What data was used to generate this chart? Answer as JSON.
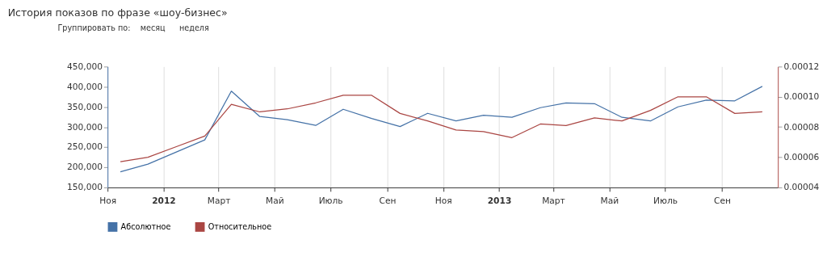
{
  "chart_data": {
    "type": "line",
    "title": "История показов по фразе «шоу-бизнес»",
    "annotations": [
      "Группировать по:",
      "месяц",
      "неделя"
    ],
    "x": [
      "2011-11-15",
      "2011-12-15",
      "2012-01-15",
      "2012-02-15",
      "2012-03-15",
      "2012-04-15",
      "2012-05-15",
      "2012-06-15",
      "2012-07-15",
      "2012-08-15",
      "2012-09-15",
      "2012-10-15",
      "2012-11-15",
      "2012-12-15",
      "2013-01-15",
      "2013-02-15",
      "2013-03-15",
      "2013-04-15",
      "2013-05-15",
      "2013-06-15",
      "2013-07-15",
      "2013-08-15",
      "2013-09-15",
      "2013-10-15"
    ],
    "series": [
      {
        "name": "Абсолютное",
        "color": "#4572a7",
        "values": [
          189000,
          208000,
          238000,
          268000,
          389000,
          326000,
          318000,
          304000,
          344000,
          321000,
          301000,
          334000,
          315000,
          329000,
          324000,
          348000,
          360000,
          358000,
          324000,
          315000,
          350000,
          367000,
          365000,
          401000
        ]
      },
      {
        "name": "Относительное",
        "color": "#aa4643",
        "axis": "y2",
        "values": [
          5.7e-05,
          6e-05,
          6.7e-05,
          7.4e-05,
          9.5e-05,
          9e-05,
          9.2e-05,
          9.6e-05,
          0.000101,
          0.000101,
          8.9e-05,
          8.4e-05,
          7.8e-05,
          7.7e-05,
          7.3e-05,
          8.2e-05,
          8.1e-05,
          8.6e-05,
          8.4e-05,
          9.1e-05,
          0.0001,
          0.0001,
          8.9e-05,
          9e-05
        ]
      }
    ],
    "xlim": [
      "2011-11-01",
      "2013-11-01"
    ],
    "xticks": [
      {
        "value": "2011-11-01",
        "label": "Ноя"
      },
      {
        "value": "2012-01-01",
        "label": "2012"
      },
      {
        "value": "2012-03-01",
        "label": "Март"
      },
      {
        "value": "2012-05-01",
        "label": "Май"
      },
      {
        "value": "2012-07-01",
        "label": "Июль"
      },
      {
        "value": "2012-09-01",
        "label": "Сен"
      },
      {
        "value": "2012-11-01",
        "label": "Ноя"
      },
      {
        "value": "2013-01-01",
        "label": "2013"
      },
      {
        "value": "2013-03-01",
        "label": "Март"
      },
      {
        "value": "2013-05-01",
        "label": "Май"
      },
      {
        "value": "2013-07-01",
        "label": "Июль"
      },
      {
        "value": "2013-09-01",
        "label": "Сен"
      }
    ],
    "ylim": [
      150000,
      450000
    ],
    "yticks": [
      {
        "value": 150000,
        "label": "150,000"
      },
      {
        "value": 200000,
        "label": "200,000"
      },
      {
        "value": 250000,
        "label": "250,000"
      },
      {
        "value": 300000,
        "label": "300,000"
      },
      {
        "value": 350000,
        "label": "350,000"
      },
      {
        "value": 400000,
        "label": "400,000"
      },
      {
        "value": 450000,
        "label": "450,000"
      }
    ],
    "y2lim": [
      4e-05,
      0.00012
    ],
    "y2ticks": [
      {
        "value": 4e-05,
        "label": "0.00004"
      },
      {
        "value": 6e-05,
        "label": "0.00006"
      },
      {
        "value": 8e-05,
        "label": "0.00008"
      },
      {
        "value": 0.0001,
        "label": "0.00010"
      },
      {
        "value": 0.00012,
        "label": "0.00012"
      }
    ],
    "grid": "x",
    "legend": "bottom left",
    "marker": "none",
    "line_style": "solid"
  }
}
